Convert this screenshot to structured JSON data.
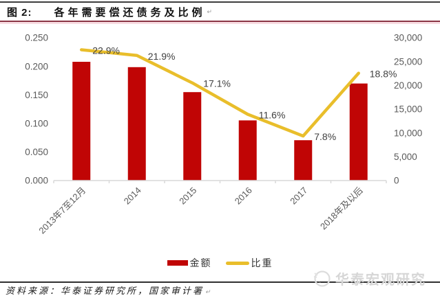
{
  "header": {
    "figure_label": "图 2:",
    "title": "各年需要偿还债务及比例",
    "return_mark": "↵"
  },
  "chart_data": {
    "type": "combo",
    "title": "各年需要偿还债务及比例",
    "categories": [
      "2013年7至12月",
      "2014",
      "2015",
      "2016",
      "2017",
      "2018年及以后"
    ],
    "series": [
      {
        "name": "金额",
        "chart": "bar",
        "axis": "right",
        "color": "#c00505",
        "values": [
          24949,
          23826,
          18578,
          12640,
          8476,
          20390
        ]
      },
      {
        "name": "比重",
        "chart": "line",
        "axis": "left",
        "color": "#e9be2b",
        "values": [
          0.229,
          0.219,
          0.171,
          0.116,
          0.078,
          0.188
        ],
        "point_labels": [
          "22.9%",
          "21.9%",
          "17.1%",
          "11.6%",
          "7.8%",
          "18.8%"
        ]
      }
    ],
    "left_axis": {
      "min": 0,
      "max": 0.25,
      "tick_labels": [
        "0.000",
        "0.050",
        "0.100",
        "0.150",
        "0.200",
        "0.250"
      ]
    },
    "right_axis": {
      "min": 0,
      "max": 30000,
      "tick_labels": [
        "0",
        "5,000",
        "10,000",
        "15,000",
        "20,000",
        "25,000",
        "30,000"
      ]
    },
    "grid": false,
    "legend_position": "bottom",
    "colors": {
      "axis_line": "#d9d9d9",
      "tick_text": "#595959",
      "point_label_text": "#3f3f3f"
    }
  },
  "legend": {
    "items": [
      {
        "label": "金额",
        "swatch": "bar",
        "color": "#c00505"
      },
      {
        "label": "比重",
        "swatch": "line",
        "color": "#e9be2b"
      }
    ]
  },
  "footer": {
    "source_label": "资料来源：",
    "source_text": "华泰证券研究所，国家审计署",
    "return_mark": "↵",
    "watermark_text": "华泰宏观研究"
  }
}
